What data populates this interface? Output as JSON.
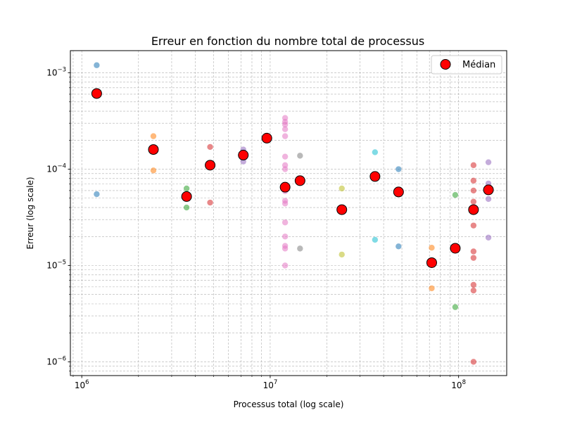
{
  "chart_data": {
    "type": "scatter",
    "title": "Erreur en fonction du nombre total de processus",
    "xlabel": "Processus total (log scale)",
    "ylabel": "Erreur (log scale)",
    "xscale": "log",
    "yscale": "log",
    "xlim": [
      870000,
      180000000
    ],
    "ylim": [
      7.2e-07,
      0.0017
    ],
    "x_tick_labels": [
      {
        "value": 1000000,
        "base": "10",
        "exp": "6"
      },
      {
        "value": 10000000,
        "base": "10",
        "exp": "7"
      },
      {
        "value": 100000000,
        "base": "10",
        "exp": "8"
      }
    ],
    "y_tick_labels": [
      {
        "value": 1e-06,
        "base": "10",
        "exp": "−6"
      },
      {
        "value": 1e-05,
        "base": "10",
        "exp": "−5"
      },
      {
        "value": 0.0001,
        "base": "10",
        "exp": "−4"
      },
      {
        "value": 0.001,
        "base": "10",
        "exp": "−3"
      }
    ],
    "grid": true,
    "legend": {
      "position": "top-right",
      "label": "Médian"
    },
    "median_color": "#ff0000",
    "points": [
      {
        "x": 1200000,
        "y": 0.0012,
        "color": "#1f77b4"
      },
      {
        "x": 1200000,
        "y": 5.5e-05,
        "color": "#1f77b4"
      },
      {
        "x": 2400000,
        "y": 0.00022,
        "color": "#ff7f0e"
      },
      {
        "x": 2400000,
        "y": 9.7e-05,
        "color": "#ff7f0e"
      },
      {
        "x": 3600000,
        "y": 6.3e-05,
        "color": "#2ca02c"
      },
      {
        "x": 3600000,
        "y": 4e-05,
        "color": "#2ca02c"
      },
      {
        "x": 4800000,
        "y": 0.00017,
        "color": "#d62728"
      },
      {
        "x": 4800000,
        "y": 4.5e-05,
        "color": "#d62728"
      },
      {
        "x": 7200000,
        "y": 0.00016,
        "color": "#9467bd"
      },
      {
        "x": 7200000,
        "y": 0.00012,
        "color": "#9467bd"
      },
      {
        "x": 9600000,
        "y": 0.00022,
        "color": "#8c564b"
      },
      {
        "x": 12000000,
        "y": 0.00034,
        "color": "#e377c2"
      },
      {
        "x": 12000000,
        "y": 0.00031,
        "color": "#e377c2"
      },
      {
        "x": 12000000,
        "y": 0.00029,
        "color": "#e377c2"
      },
      {
        "x": 12000000,
        "y": 0.00026,
        "color": "#e377c2"
      },
      {
        "x": 12000000,
        "y": 0.00022,
        "color": "#e377c2"
      },
      {
        "x": 12000000,
        "y": 0.000135,
        "color": "#e377c2"
      },
      {
        "x": 12000000,
        "y": 0.00011,
        "color": "#e377c2"
      },
      {
        "x": 12000000,
        "y": 0.0001,
        "color": "#e377c2"
      },
      {
        "x": 12000000,
        "y": 5.9e-05,
        "color": "#e377c2"
      },
      {
        "x": 12000000,
        "y": 4.7e-05,
        "color": "#e377c2"
      },
      {
        "x": 12000000,
        "y": 4.4e-05,
        "color": "#e377c2"
      },
      {
        "x": 12000000,
        "y": 2.8e-05,
        "color": "#e377c2"
      },
      {
        "x": 12000000,
        "y": 2e-05,
        "color": "#e377c2"
      },
      {
        "x": 12000000,
        "y": 1.6e-05,
        "color": "#e377c2"
      },
      {
        "x": 12000000,
        "y": 1.5e-05,
        "color": "#e377c2"
      },
      {
        "x": 12000000,
        "y": 1e-05,
        "color": "#e377c2"
      },
      {
        "x": 14400000,
        "y": 0.000138,
        "color": "#7f7f7f"
      },
      {
        "x": 14400000,
        "y": 1.5e-05,
        "color": "#7f7f7f"
      },
      {
        "x": 24000000,
        "y": 6.3e-05,
        "color": "#bcbd22"
      },
      {
        "x": 24000000,
        "y": 1.3e-05,
        "color": "#bcbd22"
      },
      {
        "x": 36000000,
        "y": 0.00015,
        "color": "#17becf"
      },
      {
        "x": 36000000,
        "y": 1.85e-05,
        "color": "#17becf"
      },
      {
        "x": 48000000,
        "y": 0.0001,
        "color": "#1f77b4"
      },
      {
        "x": 48000000,
        "y": 1.58e-05,
        "color": "#1f77b4"
      },
      {
        "x": 72000000,
        "y": 1.53e-05,
        "color": "#ff7f0e"
      },
      {
        "x": 72000000,
        "y": 5.8e-06,
        "color": "#ff7f0e"
      },
      {
        "x": 96000000,
        "y": 5.4e-05,
        "color": "#2ca02c"
      },
      {
        "x": 96000000,
        "y": 3.7e-06,
        "color": "#2ca02c"
      },
      {
        "x": 120000000,
        "y": 0.00011,
        "color": "#d62728"
      },
      {
        "x": 120000000,
        "y": 7.6e-05,
        "color": "#d62728"
      },
      {
        "x": 120000000,
        "y": 6e-05,
        "color": "#d62728"
      },
      {
        "x": 120000000,
        "y": 4.6e-05,
        "color": "#d62728"
      },
      {
        "x": 120000000,
        "y": 2.6e-05,
        "color": "#d62728"
      },
      {
        "x": 120000000,
        "y": 1.4e-05,
        "color": "#d62728"
      },
      {
        "x": 120000000,
        "y": 1.2e-05,
        "color": "#d62728"
      },
      {
        "x": 120000000,
        "y": 6.3e-06,
        "color": "#d62728"
      },
      {
        "x": 120000000,
        "y": 5.5e-06,
        "color": "#d62728"
      },
      {
        "x": 120000000,
        "y": 1e-06,
        "color": "#d62728"
      },
      {
        "x": 144000000,
        "y": 0.000118,
        "color": "#9467bd"
      },
      {
        "x": 144000000,
        "y": 7.1e-05,
        "color": "#9467bd"
      },
      {
        "x": 144000000,
        "y": 4.9e-05,
        "color": "#9467bd"
      },
      {
        "x": 144000000,
        "y": 1.95e-05,
        "color": "#9467bd"
      }
    ],
    "medians": [
      {
        "x": 1200000,
        "y": 0.00061
      },
      {
        "x": 2400000,
        "y": 0.00016
      },
      {
        "x": 3600000,
        "y": 5.2e-05
      },
      {
        "x": 4800000,
        "y": 0.00011
      },
      {
        "x": 7200000,
        "y": 0.00014
      },
      {
        "x": 9600000,
        "y": 0.00021
      },
      {
        "x": 12000000,
        "y": 6.5e-05
      },
      {
        "x": 14400000,
        "y": 7.6e-05
      },
      {
        "x": 24000000,
        "y": 3.8e-05
      },
      {
        "x": 36000000,
        "y": 8.4e-05
      },
      {
        "x": 48000000,
        "y": 5.8e-05
      },
      {
        "x": 72000000,
        "y": 1.07e-05
      },
      {
        "x": 96000000,
        "y": 1.51e-05
      },
      {
        "x": 120000000,
        "y": 3.8e-05
      },
      {
        "x": 144000000,
        "y": 6.1e-05
      }
    ]
  }
}
